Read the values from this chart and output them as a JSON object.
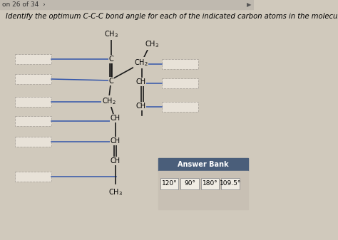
{
  "title_text": "Identify the optimum C-C-C bond angle for each of the indicated carbon atoms in the molecule.",
  "header_text": "on 26 of 34  ›",
  "bg_color": "#d0c9bc",
  "answer_bank_bg": "#4a5e7a",
  "answer_bank_label": "Answer Bank",
  "answer_options": [
    "120°",
    "90°",
    "180°",
    "109.5°"
  ],
  "input_box_bg": "#e8e2d8",
  "input_box_border": "#aaa49c",
  "line_color": "#3355aa",
  "bond_color": "#1a1a1a",
  "white_bg": "#f0ece4",
  "answer_body_bg": "#c8c0b4"
}
